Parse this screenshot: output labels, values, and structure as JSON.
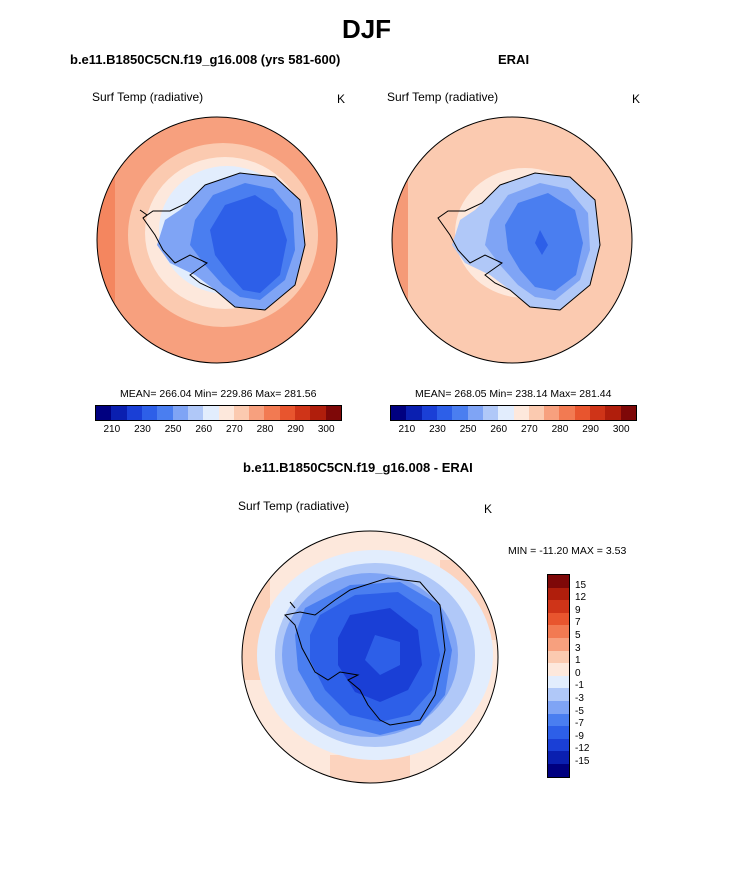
{
  "title": "DJF",
  "panels": {
    "model": {
      "title": "b.e11.B1850C5CN.f19_g16.008 (yrs 581-600)",
      "variable": "Surf Temp (radiative)",
      "units": "K",
      "stats": "MEAN= 266.04  Min= 229.86  Max= 281.56"
    },
    "obs": {
      "title": "ERAI",
      "variable": "Surf Temp (radiative)",
      "units": "K",
      "stats": "MEAN= 268.05  Min= 238.14  Max= 281.44"
    },
    "diff": {
      "title": "b.e11.B1850C5CN.f19_g16.008 - ERAI",
      "variable": "Surf Temp (radiative)",
      "units": "K",
      "stats": "MIN = -11.20 MAX =   3.53"
    }
  },
  "abs_colorbar": {
    "colors": [
      "#000080",
      "#0a1fb0",
      "#1a3fd6",
      "#2d5fe8",
      "#4a7ef0",
      "#7fa4f5",
      "#b0c8f8",
      "#e2edfd",
      "#fde8dc",
      "#fbcab0",
      "#f7a07e",
      "#f27a52",
      "#e8552e",
      "#cf3418",
      "#b01e0c",
      "#7e0808"
    ],
    "tick_labels": [
      "210",
      "230",
      "250",
      "260",
      "270",
      "280",
      "290",
      "300"
    ]
  },
  "diff_colorbar": {
    "colors": [
      "#7e0808",
      "#b01e0c",
      "#cf3418",
      "#e8552e",
      "#f27a52",
      "#f7a07e",
      "#fbcab0",
      "#fde8dc",
      "#e2edfd",
      "#b0c8f8",
      "#7fa4f5",
      "#4a7ef0",
      "#2d5fe8",
      "#1a3fd6",
      "#0a1fb0",
      "#000080"
    ],
    "tick_labels": [
      "15",
      "12",
      "9",
      "7",
      "5",
      "3",
      "1",
      "0",
      "-1",
      "-3",
      "-5",
      "-7",
      "-9",
      "-12",
      "-15"
    ]
  }
}
